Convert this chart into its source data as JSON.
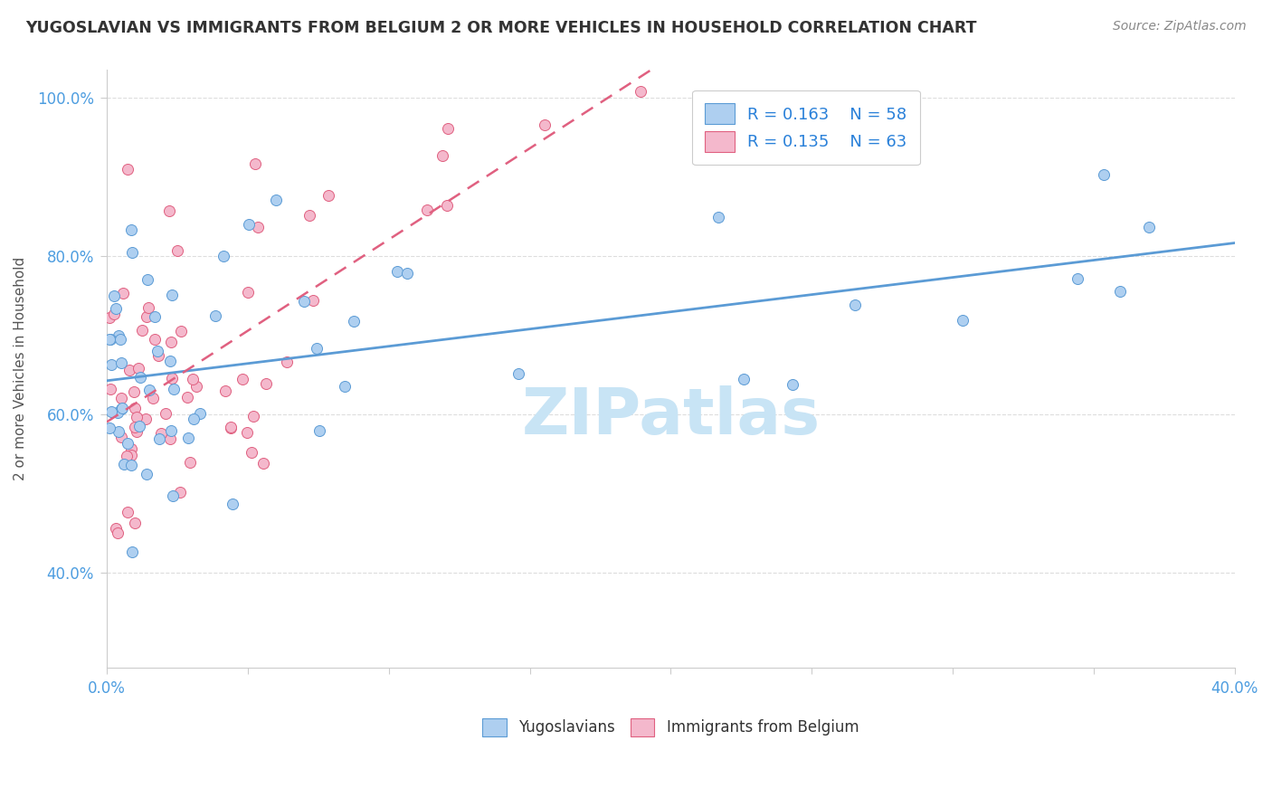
{
  "title": "YUGOSLAVIAN VS IMMIGRANTS FROM BELGIUM 2 OR MORE VEHICLES IN HOUSEHOLD CORRELATION CHART",
  "source": "Source: ZipAtlas.com",
  "xlabel_series1": "Yugoslavians",
  "xlabel_series2": "Immigrants from Belgium",
  "ylabel": "2 or more Vehicles in Household",
  "xlim": [
    0.0,
    0.4
  ],
  "ylim": [
    0.28,
    1.035
  ],
  "xticks": [
    0.0,
    0.05,
    0.1,
    0.15,
    0.2,
    0.25,
    0.3,
    0.35,
    0.4
  ],
  "xtick_labels": [
    "0.0%",
    "",
    "",
    "",
    "",
    "",
    "",
    "",
    "40.0%"
  ],
  "yticks": [
    0.4,
    0.6,
    0.8,
    1.0
  ],
  "ytick_labels": [
    "40.0%",
    "60.0%",
    "80.0%",
    "100.0%"
  ],
  "series1_color": "#aecff0",
  "series1_edge": "#5b9bd5",
  "series2_color": "#f4b8cc",
  "series2_edge": "#e06080",
  "trend1_color": "#5b9bd5",
  "trend2_color": "#e06080",
  "R1": 0.163,
  "N1": 58,
  "R2": 0.135,
  "N2": 63,
  "watermark": "ZIPatlas",
  "watermark_color": "#c8e4f5",
  "legend_text_color": "#2980d9",
  "title_color": "#333333",
  "source_color": "#888888",
  "ylabel_color": "#555555",
  "tick_label_color": "#4d9de0",
  "grid_color": "#dddddd",
  "spine_color": "#cccccc"
}
